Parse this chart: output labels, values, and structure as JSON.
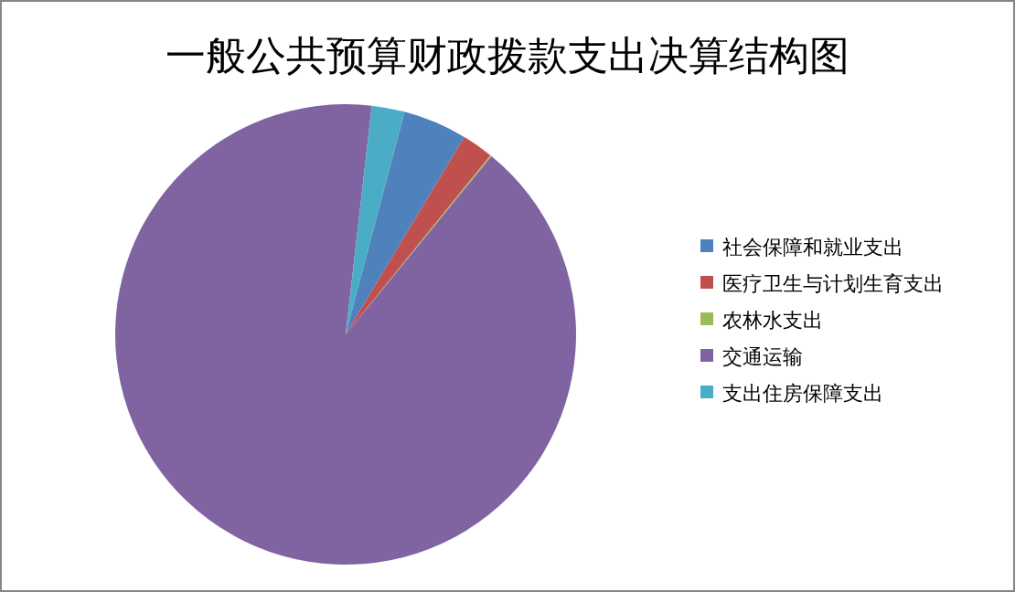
{
  "chart_data": {
    "type": "pie",
    "title": "一般公共预算财政拨款支出决算结构图",
    "categories": [
      "社会保障和就业支出",
      "医疗卫生与计划生育支出",
      "农林水支出",
      "交通运输",
      "支出住房保障支出"
    ],
    "values": [
      4.5,
      2.2,
      0.1,
      90.9,
      2.3
    ],
    "colors": [
      "#4f81bd",
      "#c0504d",
      "#9bbb59",
      "#8064a2",
      "#4bacc6"
    ],
    "legend": "right"
  }
}
